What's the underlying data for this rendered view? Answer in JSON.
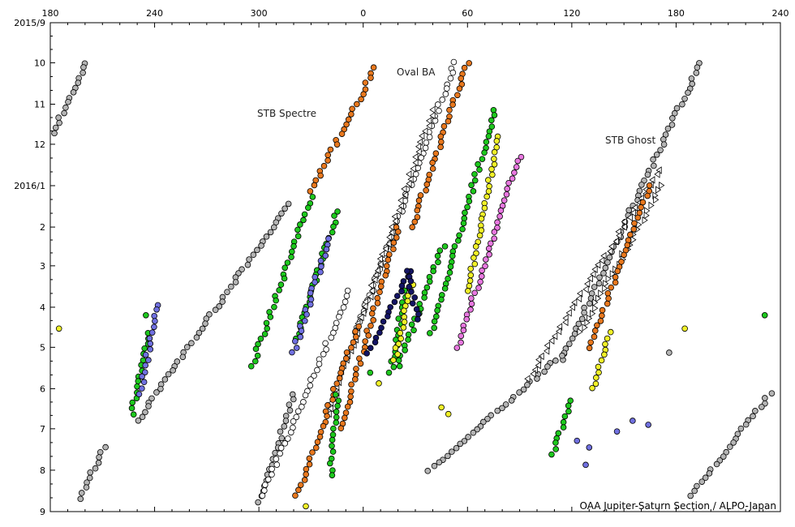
{
  "chart_data": {
    "type": "scatter",
    "title": "",
    "xlabel": "",
    "ylabel": "",
    "x_axis": {
      "description": "System II longitude (degrees), increasing to the right, wrapping 180→360/0→240",
      "range_deg": [
        180,
        600
      ],
      "tick_labels": [
        "180",
        "240",
        "300",
        "0",
        "60",
        "120",
        "180",
        "240"
      ],
      "tick_values": [
        180,
        240,
        300,
        360,
        420,
        480,
        540,
        600
      ]
    },
    "y_axis": {
      "description": "Date, increasing downward (month number)",
      "range": [
        "2015-09-01",
        "2016-09-01"
      ],
      "tick_labels": [
        "2015/9",
        "10",
        "11",
        "12",
        "2016/1",
        "2",
        "3",
        "4",
        "5",
        "6",
        "7",
        "8",
        "9"
      ],
      "tick_dates": [
        "2015-09-01",
        "2015-10-01",
        "2015-11-01",
        "2015-12-01",
        "2016-01-01",
        "2016-02-01",
        "2016-03-01",
        "2016-04-01",
        "2016-05-01",
        "2016-06-01",
        "2016-07-01",
        "2016-08-01",
        "2016-09-01"
      ]
    },
    "grid": false,
    "annotations": [
      {
        "text": "Oval BA",
        "x": 392,
        "date": "2015-10-07"
      },
      {
        "text": "STB Spectre",
        "x": 308,
        "date": "2015-11-08"
      },
      {
        "text": "STB Ghost",
        "x": 544,
        "date": "2015-12-01"
      }
    ],
    "credit": "OAA Jupiter-Saturn Section / ALPO-Japan",
    "colors": {
      "gray": "#b4b4b4",
      "white": "#ffffff",
      "orange": "#e8781e",
      "green": "#1ec81e",
      "yellow": "#f0f028",
      "blue": "#7070e0",
      "navy": "#141464",
      "pink": "#e878e0"
    },
    "tracks": [
      {
        "color": "gray",
        "marker": "circle",
        "start": [
          201,
          "2015-10-01"
        ],
        "end": [
          180,
          "2015-11-26"
        ]
      },
      {
        "color": "gray",
        "marker": "circle",
        "start": [
          211,
          "2016-07-15"
        ],
        "end": [
          197,
          "2016-08-22"
        ]
      },
      {
        "color": "gray",
        "marker": "circle",
        "start": [
          317,
          "2016-01-15"
        ],
        "end": [
          230,
          "2016-06-25"
        ]
      },
      {
        "color": "gray",
        "marker": "circle",
        "start": [
          320,
          "2016-06-05"
        ],
        "end": [
          300,
          "2016-08-25"
        ]
      },
      {
        "color": "gray",
        "marker": "circle",
        "start": [
          554,
          "2015-10-01"
        ],
        "end": [
          474,
          "2016-05-10"
        ]
      },
      {
        "color": "gray",
        "marker": "circle",
        "start": [
          476,
          "2016-05-05"
        ],
        "end": [
          398,
          "2016-08-01"
        ]
      },
      {
        "color": "gray",
        "marker": "circle",
        "start": [
          594,
          "2016-06-05"
        ],
        "end": [
          549,
          "2016-08-20"
        ]
      },
      {
        "color": "white",
        "marker": "circle",
        "start": [
          413,
          "2015-10-01"
        ],
        "end": [
          356,
          "2016-04-20"
        ]
      },
      {
        "color": "white",
        "marker": "circle",
        "start": [
          352,
          "2016-03-20"
        ],
        "end": [
          302,
          "2016-08-20"
        ]
      },
      {
        "color": "white",
        "marker": "triangle-left",
        "start": [
          400,
          "2015-11-05"
        ],
        "end": [
          340,
          "2016-06-20"
        ]
      },
      {
        "color": "white",
        "marker": "triangle-left",
        "start": [
          530,
          "2015-12-20"
        ],
        "end": [
          455,
          "2016-05-25"
        ]
      },
      {
        "color": "white",
        "marker": "triangle-right",
        "start": [
          532,
          "2016-01-01"
        ],
        "end": [
          485,
          "2016-04-20"
        ]
      },
      {
        "color": "orange",
        "marker": "circle",
        "start": [
          367,
          "2015-10-05"
        ],
        "end": [
          330,
          "2016-01-05"
        ]
      },
      {
        "color": "orange",
        "marker": "circle",
        "start": [
          380,
          "2016-02-01"
        ],
        "end": [
          347,
          "2016-07-01"
        ]
      },
      {
        "color": "orange",
        "marker": "circle",
        "start": [
          420,
          "2015-10-01"
        ],
        "end": [
          388,
          "2016-02-01"
        ]
      },
      {
        "color": "orange",
        "marker": "circle",
        "start": [
          357,
          "2016-04-15"
        ],
        "end": [
          322,
          "2016-08-20"
        ]
      },
      {
        "color": "orange",
        "marker": "circle",
        "start": [
          525,
          "2016-01-01"
        ],
        "end": [
          490,
          "2016-05-01"
        ]
      },
      {
        "color": "green",
        "marker": "circle",
        "start": [
          436,
          "2015-11-05"
        ],
        "end": [
          399,
          "2016-04-20"
        ]
      },
      {
        "color": "green",
        "marker": "circle",
        "start": [
          406,
          "2016-02-15"
        ],
        "end": [
          380,
          "2016-05-15"
        ]
      },
      {
        "color": "green",
        "marker": "circle",
        "start": [
          330,
          "2016-01-10"
        ],
        "end": [
          296,
          "2016-05-15"
        ]
      },
      {
        "color": "green",
        "marker": "circle",
        "start": [
          345,
          "2016-01-20"
        ],
        "end": [
          322,
          "2016-04-25"
        ]
      },
      {
        "color": "green",
        "marker": "circle",
        "start": [
          237,
          "2016-04-20"
        ],
        "end": [
          227,
          "2016-06-20"
        ]
      },
      {
        "color": "green",
        "marker": "circle",
        "start": [
          345,
          "2016-06-05"
        ],
        "end": [
          341,
          "2016-08-05"
        ]
      },
      {
        "color": "green",
        "marker": "circle",
        "start": [
          480,
          "2016-06-10"
        ],
        "end": [
          469,
          "2016-07-20"
        ]
      },
      {
        "color": "green",
        "marker": "circle",
        "start": [
          384,
          "2016-03-20"
        ],
        "end": [
          376,
          "2016-05-20"
        ]
      },
      {
        "color": "yellow",
        "marker": "circle",
        "start": [
          438,
          "2015-11-25"
        ],
        "end": [
          420,
          "2016-03-20"
        ]
      },
      {
        "color": "yellow",
        "marker": "circle",
        "start": [
          502,
          "2016-04-20"
        ],
        "end": [
          492,
          "2016-06-01"
        ]
      },
      {
        "color": "yellow",
        "marker": "circle",
        "start": [
          388,
          "2016-03-15"
        ],
        "end": [
          378,
          "2016-05-10"
        ]
      },
      {
        "color": "blue",
        "marker": "circle",
        "start": [
          241,
          "2016-03-30"
        ],
        "end": [
          232,
          "2016-06-05"
        ]
      },
      {
        "color": "blue",
        "marker": "circle",
        "start": [
          340,
          "2016-02-10"
        ],
        "end": [
          320,
          "2016-05-05"
        ]
      },
      {
        "color": "navy",
        "marker": "circle",
        "start": [
          387,
          "2016-03-05"
        ],
        "end": [
          363,
          "2016-05-05"
        ]
      },
      {
        "color": "navy",
        "marker": "circle",
        "start": [
          385,
          "2016-03-05"
        ],
        "end": [
          392,
          "2016-04-10"
        ]
      },
      {
        "color": "pink",
        "marker": "circle",
        "start": [
          450,
          "2015-12-10"
        ],
        "end": [
          414,
          "2016-05-01"
        ]
      }
    ],
    "points": [
      {
        "color": "yellow",
        "marker": "circle",
        "x": 185,
        "date": "2016-04-17"
      },
      {
        "color": "green",
        "marker": "circle",
        "x": 235,
        "date": "2016-04-07"
      },
      {
        "color": "yellow",
        "marker": "circle",
        "x": 545,
        "date": "2016-04-17"
      },
      {
        "color": "green",
        "marker": "circle",
        "x": 591,
        "date": "2016-04-07"
      },
      {
        "color": "gray",
        "marker": "circle",
        "x": 536,
        "date": "2016-05-05"
      },
      {
        "color": "blue",
        "marker": "circle",
        "x": 515,
        "date": "2016-06-25"
      },
      {
        "color": "blue",
        "marker": "circle",
        "x": 524,
        "date": "2016-06-28"
      },
      {
        "color": "blue",
        "marker": "circle",
        "x": 506,
        "date": "2016-07-03"
      },
      {
        "color": "blue",
        "marker": "circle",
        "x": 483,
        "date": "2016-07-10"
      },
      {
        "color": "blue",
        "marker": "circle",
        "x": 490,
        "date": "2016-07-15"
      },
      {
        "color": "blue",
        "marker": "circle",
        "x": 488,
        "date": "2016-07-28"
      },
      {
        "color": "yellow",
        "marker": "circle",
        "x": 409,
        "date": "2016-06-20"
      },
      {
        "color": "yellow",
        "marker": "circle",
        "x": 405,
        "date": "2016-06-15"
      },
      {
        "color": "yellow",
        "marker": "circle",
        "x": 369,
        "date": "2016-05-28"
      },
      {
        "color": "yellow",
        "marker": "circle",
        "x": 327,
        "date": "2016-08-28"
      },
      {
        "color": "green",
        "marker": "circle",
        "x": 364,
        "date": "2016-05-20"
      }
    ]
  }
}
